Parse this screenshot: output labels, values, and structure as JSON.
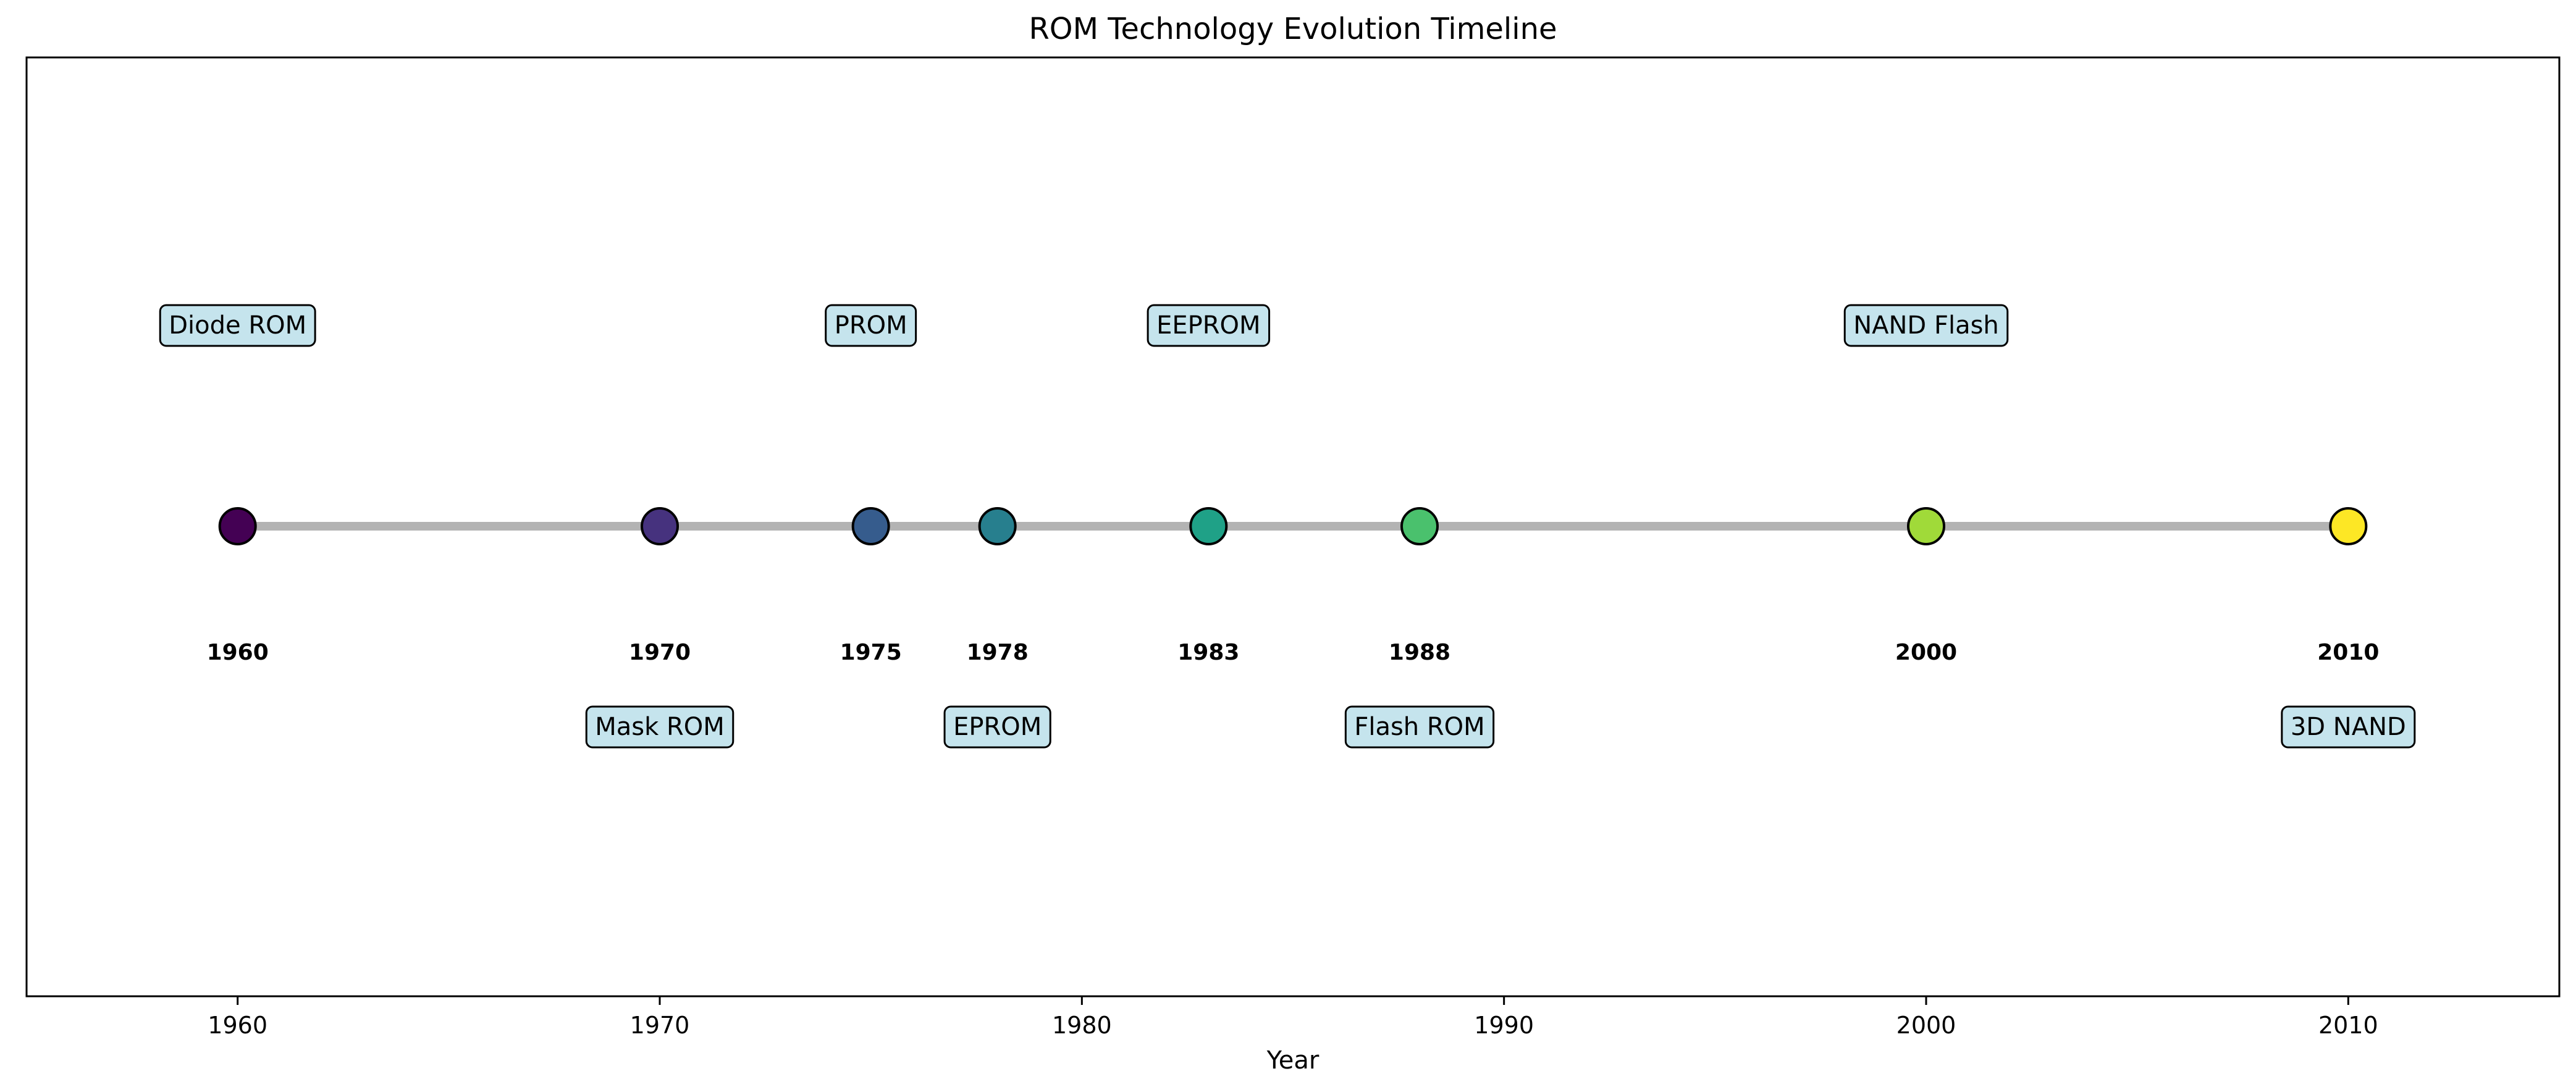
{
  "chart_data": {
    "type": "scatter",
    "title": "ROM Technology Evolution Timeline",
    "xlabel": "Year",
    "ylabel": "",
    "xlim": [
      1955,
      2015
    ],
    "xticks": [
      1960,
      1970,
      1980,
      1990,
      2000,
      2010
    ],
    "grid": false,
    "legend": "none",
    "line_color": "#b3b3b3",
    "label_box_color": "#add8e6",
    "events": [
      {
        "year": 1960,
        "label": "Diode ROM",
        "position": "above",
        "color": "#440154"
      },
      {
        "year": 1970,
        "label": "Mask ROM",
        "position": "below",
        "color": "#46327e"
      },
      {
        "year": 1975,
        "label": "PROM",
        "position": "above",
        "color": "#365c8d"
      },
      {
        "year": 1978,
        "label": "EPROM",
        "position": "below",
        "color": "#277f8e"
      },
      {
        "year": 1983,
        "label": "EEPROM",
        "position": "above",
        "color": "#1fa187"
      },
      {
        "year": 1988,
        "label": "Flash ROM",
        "position": "below",
        "color": "#4ac16d"
      },
      {
        "year": 2000,
        "label": "NAND Flash",
        "position": "above",
        "color": "#a0da39"
      },
      {
        "year": 2010,
        "label": "3D NAND",
        "position": "below",
        "color": "#fde725"
      }
    ]
  }
}
